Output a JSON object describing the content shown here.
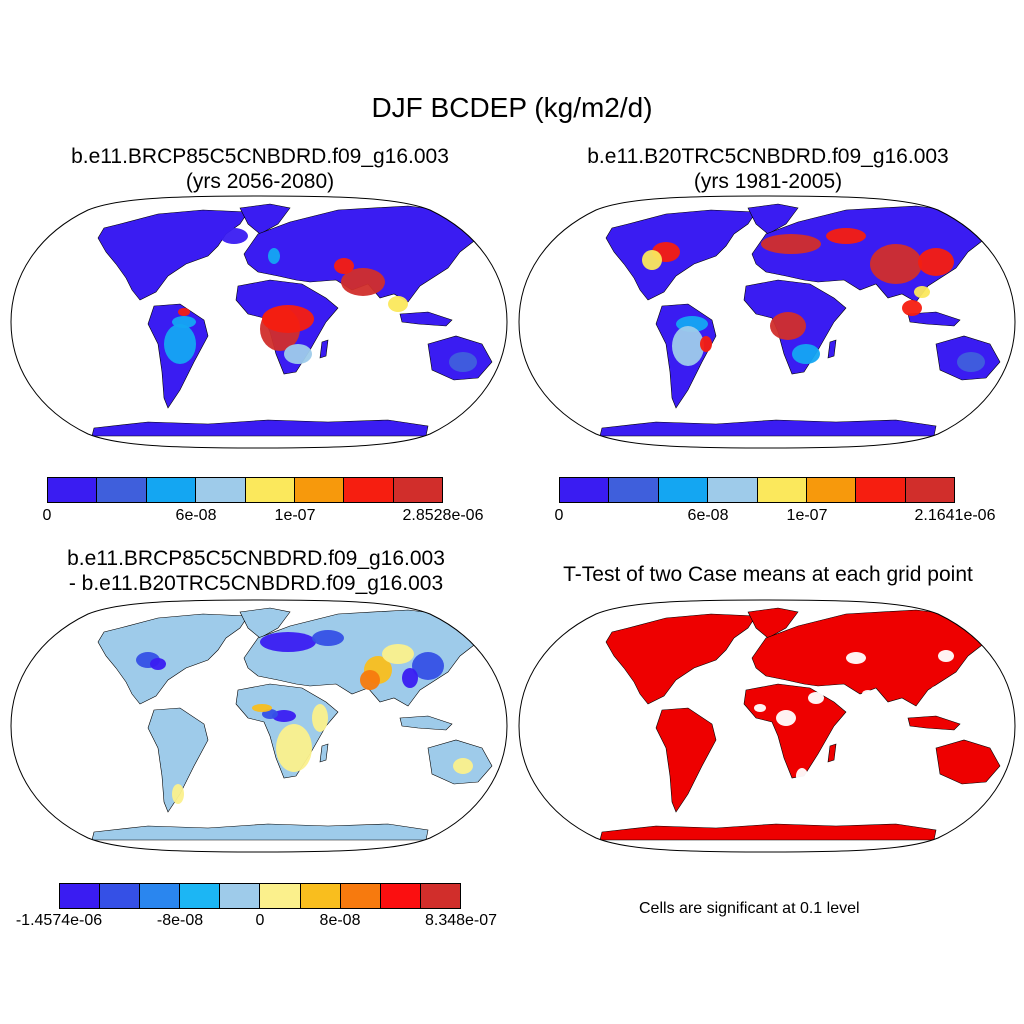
{
  "title": "DJF BCDEP (kg/m2/d)",
  "panels": {
    "top_left": {
      "line1": "b.e11.BRCP85C5CNBDRD.f09_g16.003",
      "line2": "(yrs 2056-2080)",
      "colorbar": {
        "colors": [
          "#3a1cf2",
          "#3f5fdc",
          "#14a6f2",
          "#9ecbea",
          "#fbe85c",
          "#f7990c",
          "#f61e10",
          "#d12e2b"
        ],
        "ticks": [
          "0",
          "6e-08",
          "1e-07",
          "2.8528e-06"
        ]
      }
    },
    "top_right": {
      "line1": "b.e11.B20TRC5CNBDRD.f09_g16.003",
      "line2": "(yrs 1981-2005)",
      "colorbar": {
        "colors": [
          "#3a1cf2",
          "#3f5fdc",
          "#14a6f2",
          "#9ecbea",
          "#fbe85c",
          "#f7990c",
          "#f61e10",
          "#d12e2b"
        ],
        "ticks": [
          "0",
          "6e-08",
          "1e-07",
          "2.1641e-06"
        ]
      }
    },
    "bottom_left": {
      "line1": "b.e11.BRCP85C5CNBDRD.f09_g16.003",
      "line2": "- b.e11.B20TRC5CNBDRD.f09_g16.003",
      "colorbar": {
        "colors": [
          "#3a1cf2",
          "#3550e6",
          "#2a86ef",
          "#1cb6f4",
          "#9ecbea",
          "#fbf08c",
          "#f9be1e",
          "#f77a0e",
          "#fb0f10",
          "#d12e2b"
        ],
        "ticks": [
          "-1.4574e-06",
          "-8e-08",
          "0",
          "8e-08",
          "8.348e-07"
        ]
      }
    },
    "bottom_right": {
      "line1": "T-Test of two Case means at each grid point",
      "note": "Cells are significant at 0.1 level",
      "fill_color": "#ee0000"
    }
  }
}
